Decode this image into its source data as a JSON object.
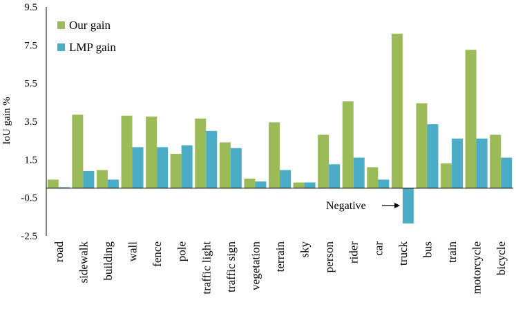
{
  "chart_data": {
    "type": "bar",
    "title": "",
    "xlabel": "",
    "ylabel": "IoU gain %",
    "ylim": [
      -2.5,
      9.5
    ],
    "yticks": [
      9.5,
      7.5,
      5.5,
      3.5,
      1.5,
      -0.5,
      -2.5
    ],
    "ytick_labels": [
      "9.5",
      "7.5",
      "5.5",
      "3.5",
      "1.5",
      "-0.5",
      "-2.5"
    ],
    "grid": false,
    "legend_position": "top-left",
    "categories": [
      "road",
      "sidewalk",
      "building",
      "wall",
      "fence",
      "pole",
      "traffic light",
      "traffic sign",
      "vegetation",
      "terrain",
      "sky",
      "person",
      "rider",
      "car",
      "truck",
      "bus",
      "train",
      "motorcycle",
      "bicycle"
    ],
    "series": [
      {
        "name": "Our gain",
        "color": "#9BBB59",
        "values": [
          0.45,
          3.85,
          0.95,
          3.8,
          3.75,
          1.8,
          3.65,
          2.4,
          0.5,
          3.45,
          0.3,
          2.8,
          4.55,
          1.1,
          8.1,
          4.45,
          1.3,
          7.25,
          2.8
        ]
      },
      {
        "name": "LMP gain",
        "color": "#4BACC6",
        "values": [
          0.05,
          0.9,
          0.45,
          2.15,
          2.15,
          2.25,
          3.0,
          2.1,
          0.35,
          0.95,
          0.3,
          1.25,
          1.6,
          0.45,
          -1.85,
          3.35,
          2.6,
          2.6,
          1.6
        ]
      }
    ],
    "annotations": [
      {
        "text": "Negative",
        "points_to": "truck / LMP gain"
      }
    ]
  }
}
